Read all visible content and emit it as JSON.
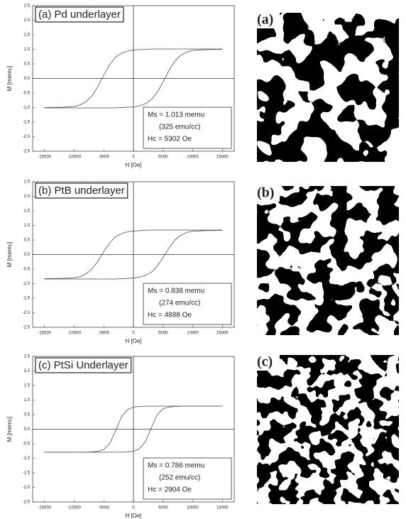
{
  "chart_data": [
    {
      "type": "line",
      "title": "(a) Pd underlayer",
      "xlabel": "H [Oe]",
      "ylabel": "M [memu]",
      "annotations": [
        "Ms = 1.013 memu",
        "(325 emu/cc)",
        "Hc = 5302 Oe"
      ],
      "x": [
        -15000,
        -12000,
        -10000,
        -9000,
        -8000,
        -7000,
        -6000,
        -5000,
        -4000,
        -3000,
        -2000,
        -1000,
        0,
        1000,
        2000,
        3000,
        4000,
        5000,
        6000,
        7000,
        8000,
        9000,
        10000,
        12000,
        15000
      ],
      "series": [
        {
          "color": "#333333",
          "values": [
            -1.0,
            -0.99,
            -0.96,
            -0.91,
            -0.8,
            -0.6,
            -0.28,
            0.12,
            0.48,
            0.73,
            0.87,
            0.94,
            0.98,
            0.99,
            1.0,
            1.01,
            1.01,
            1.01,
            1.01,
            1.01,
            1.01,
            1.01,
            1.01,
            1.01,
            1.01
          ]
        },
        {
          "color": "#333333",
          "values": [
            -1.01,
            -1.01,
            -1.01,
            -1.01,
            -1.01,
            -1.01,
            -1.01,
            -1.01,
            -1.01,
            -1.01,
            -1.0,
            -0.99,
            -0.98,
            -0.94,
            -0.87,
            -0.73,
            -0.48,
            -0.12,
            0.28,
            0.6,
            0.8,
            0.91,
            0.96,
            0.99,
            1.0
          ]
        }
      ],
      "xlim": [
        -17000,
        17000
      ],
      "ylim": [
        -2.5,
        2.5
      ],
      "xticks": [
        -15000,
        -10000,
        -5000,
        0,
        5000,
        10000,
        15000
      ],
      "yticks": [
        2.5,
        {
          "value": 2,
          "label": "2.0"
        },
        1.5,
        {
          "value": 1,
          "label": "1.0"
        },
        0.5,
        {
          "value": 0,
          "label": "0.0"
        },
        -0.5,
        {
          "value": -1,
          "label": "-1.0"
        },
        -1.5,
        {
          "value": -2,
          "label": "-2.0"
        },
        -2.5
      ]
    },
    {
      "type": "line",
      "title": "(b) PtB underlayer",
      "xlabel": "H [Oe]",
      "ylabel": "M [memu]",
      "annotations": [
        "Ms = 0.838 memu",
        "(274 emu/cc)",
        "Hc = 4888 Oe"
      ],
      "x": [
        -15000,
        -12000,
        -10000,
        -9000,
        -8000,
        -7000,
        -6000,
        -5000,
        -4000,
        -3000,
        -2000,
        -1000,
        0,
        1000,
        2000,
        3000,
        4000,
        5000,
        6000,
        7000,
        8000,
        9000,
        10000,
        12000,
        15000
      ],
      "series": [
        {
          "color": "#333333",
          "values": [
            -0.83,
            -0.82,
            -0.8,
            -0.76,
            -0.66,
            -0.5,
            -0.23,
            0.1,
            0.4,
            0.61,
            0.72,
            0.78,
            0.81,
            0.82,
            0.83,
            0.84,
            0.84,
            0.84,
            0.84,
            0.84,
            0.84,
            0.84,
            0.84,
            0.84,
            0.84
          ]
        },
        {
          "color": "#333333",
          "values": [
            -0.84,
            -0.84,
            -0.84,
            -0.84,
            -0.84,
            -0.84,
            -0.84,
            -0.84,
            -0.84,
            -0.84,
            -0.83,
            -0.82,
            -0.81,
            -0.78,
            -0.72,
            -0.61,
            -0.4,
            -0.1,
            0.23,
            0.5,
            0.66,
            0.76,
            0.8,
            0.82,
            0.83
          ]
        }
      ],
      "xlim": [
        -17000,
        17000
      ],
      "ylim": [
        -2.5,
        2.5
      ],
      "xticks": [
        -15000,
        -10000,
        -5000,
        0,
        5000,
        10000,
        15000
      ],
      "yticks": [
        2.5,
        {
          "value": 2,
          "label": "2.0"
        },
        1.5,
        {
          "value": 1,
          "label": "1.0"
        },
        0.5,
        {
          "value": 0,
          "label": "0.0"
        },
        -0.5,
        {
          "value": -1,
          "label": "-1.0"
        },
        -1.5,
        {
          "value": -2,
          "label": "-2.0"
        },
        -2.5
      ]
    },
    {
      "type": "line",
      "title": "(c) PtSi Underlayer",
      "xlabel": "H [Oe]",
      "ylabel": "M [memu]",
      "annotations": [
        "Ms = 0.786 memu",
        "(252 emu/cc)",
        "Hc = 2904 Oe"
      ],
      "x": [
        -15000,
        -12000,
        -10000,
        -9000,
        -8000,
        -7000,
        -6000,
        -5000,
        -4000,
        -3000,
        -2000,
        -1000,
        0,
        1000,
        2000,
        3000,
        4000,
        5000,
        6000,
        7000,
        8000,
        9000,
        10000,
        12000,
        15000
      ],
      "series": [
        {
          "color": "#333333",
          "values": [
            -0.79,
            -0.79,
            -0.79,
            -0.79,
            -0.79,
            -0.78,
            -0.76,
            -0.7,
            -0.49,
            -0.05,
            0.43,
            0.67,
            0.76,
            0.78,
            0.79,
            0.79,
            0.79,
            0.79,
            0.79,
            0.79,
            0.79,
            0.79,
            0.79,
            0.79,
            0.79
          ]
        },
        {
          "color": "#333333",
          "values": [
            -0.79,
            -0.79,
            -0.79,
            -0.79,
            -0.79,
            -0.79,
            -0.79,
            -0.79,
            -0.79,
            -0.79,
            -0.79,
            -0.78,
            -0.76,
            -0.67,
            -0.43,
            0.05,
            0.49,
            0.7,
            0.76,
            0.78,
            0.79,
            0.79,
            0.79,
            0.79,
            0.79
          ]
        }
      ],
      "xlim": [
        -17000,
        17000
      ],
      "ylim": [
        -2.5,
        2.5
      ],
      "xticks": [
        -15000,
        -10000,
        -5000,
        0,
        5000,
        10000,
        15000
      ],
      "yticks": [
        2.5,
        {
          "value": 2,
          "label": "2.0"
        },
        1.5,
        {
          "value": 1,
          "label": "1.0"
        },
        0.5,
        {
          "value": 0,
          "label": "0.0"
        },
        -0.5,
        {
          "value": -1,
          "label": "-1.0"
        },
        -1.5,
        {
          "value": -2,
          "label": "-2.0"
        },
        -2.5
      ]
    }
  ],
  "images": [
    {
      "label": "(a)"
    },
    {
      "label": "(b)"
    },
    {
      "label": "(c)"
    }
  ]
}
